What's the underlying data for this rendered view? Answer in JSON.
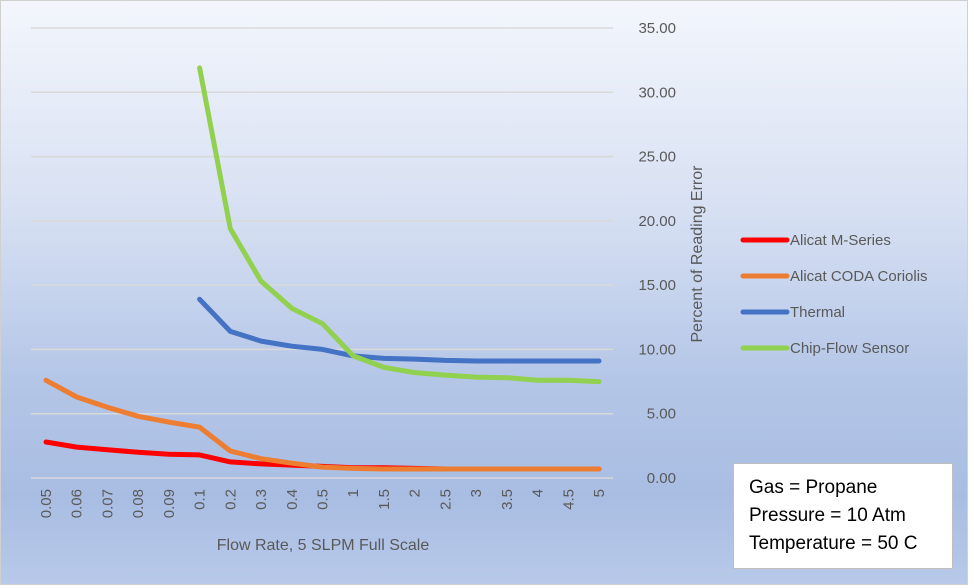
{
  "chart_data": {
    "type": "line",
    "title": "",
    "xlabel": "Flow Rate, 5 SLPM Full Scale",
    "ylabel": "Percent of Reading Error",
    "categories": [
      "0.05",
      "0.06",
      "0.07",
      "0.08",
      "0.09",
      "0.1",
      "0.2",
      "0.3",
      "0.4",
      "0.5",
      "1",
      "1.5",
      "2",
      "2.5",
      "3",
      "3.5",
      "4",
      "4.5",
      "5"
    ],
    "ylim": [
      0,
      35
    ],
    "yticks": [
      "0.00",
      "5.00",
      "10.00",
      "15.00",
      "20.00",
      "25.00",
      "30.00",
      "35.00"
    ],
    "grid": true,
    "legend_position": "right",
    "series": [
      {
        "name": "Alicat M-Series",
        "color": "#ff0000",
        "values": [
          2.8,
          2.4,
          2.2,
          2.0,
          1.85,
          1.8,
          1.25,
          1.1,
          1.0,
          0.9,
          0.8,
          0.8,
          0.75,
          0.7,
          0.7,
          0.7,
          0.7,
          0.7,
          0.7
        ]
      },
      {
        "name": "Alicat CODA Coriolis",
        "color": "#ed7d31",
        "values": [
          7.6,
          6.3,
          5.5,
          4.8,
          4.35,
          3.95,
          2.1,
          1.5,
          1.15,
          0.85,
          0.75,
          0.7,
          0.7,
          0.7,
          0.7,
          0.7,
          0.7,
          0.7,
          0.7
        ]
      },
      {
        "name": "Thermal",
        "color": "#4472c4",
        "values": [
          null,
          null,
          null,
          null,
          null,
          13.9,
          11.4,
          10.65,
          10.25,
          10.0,
          9.5,
          9.3,
          9.25,
          9.15,
          9.1,
          9.1,
          9.1,
          9.1,
          9.1
        ]
      },
      {
        "name": "Chip-Flow Sensor",
        "color": "#92d050",
        "values": [
          null,
          null,
          null,
          null,
          null,
          31.9,
          19.4,
          15.3,
          13.2,
          12.0,
          9.5,
          8.6,
          8.2,
          8.0,
          7.85,
          7.8,
          7.6,
          7.6,
          7.5
        ]
      }
    ],
    "annotation": [
      "Gas = Propane",
      "Pressure = 10 Atm",
      "Temperature = 50 C"
    ]
  }
}
